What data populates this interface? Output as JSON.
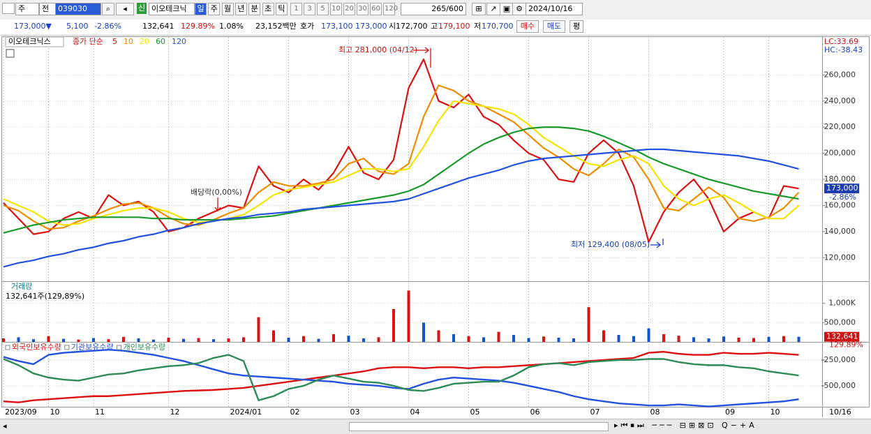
{
  "toolbar": {
    "type_a": "주",
    "type_b": "전",
    "code": "039030",
    "badge": "신",
    "name": "이오테크닉",
    "periods": [
      "일",
      "주",
      "월",
      "년",
      "분",
      "초",
      "틱"
    ],
    "counts": [
      "1",
      "3",
      "5",
      "10",
      "20",
      "30",
      "60",
      "120"
    ],
    "range": "265/600",
    "date": "2024/10/16"
  },
  "info_bar": {
    "price": "173,000▼",
    "change": "5,100",
    "rate": "-2.86%",
    "volume": "132,641",
    "volume_ratio": "129.89%",
    "turnover": "1.08%",
    "amount": "23,152백만",
    "ask_label": "호가",
    "ask": "173,100",
    "bid": "173,000",
    "open_label": "시",
    "open": "172,700",
    "high_label": "고",
    "high": "179,100",
    "low_label": "저",
    "low": "170,700",
    "buy": "매수",
    "sell": "매도",
    "eval": "평"
  },
  "chart_data": [
    {
      "type": "line",
      "stock_name": "이오테크닉스",
      "ma_label": "종가 단순",
      "lc": "LC:33.69",
      "hc": "HC:-38.43",
      "ylim": [
        102000,
        288000
      ],
      "yticks": [
        {
          "value": 120000,
          "label": "120,000"
        },
        {
          "value": 140000,
          "label": "140,000"
        },
        {
          "value": 160000,
          "label": "160,000"
        },
        {
          "value": 180000,
          "label": "180,000"
        },
        {
          "value": 200000,
          "label": "200,000"
        },
        {
          "value": 220000,
          "label": "220,000"
        },
        {
          "value": 240000,
          "label": "240,000"
        },
        {
          "value": 260000,
          "label": "260,000"
        }
      ],
      "grid": true,
      "price_tag": {
        "value": 173000,
        "label": "173,000"
      },
      "change_tag": "-2.86%",
      "annotations": [
        "최고 281,000 (04/12)",
        "배당락(0,00%)",
        "최저 129,400 (08/05)"
      ],
      "series": [
        {
          "name": "5",
          "color": "#dd1111",
          "values": [
            162000,
            150000,
            138000,
            140000,
            150000,
            155000,
            150000,
            168000,
            160000,
            163000,
            155000,
            140000,
            143000,
            150000,
            155000,
            160000,
            158000,
            190000,
            175000,
            170000,
            180000,
            172000,
            185000,
            205000,
            185000,
            180000,
            195000,
            250000,
            272000,
            240000,
            235000,
            245000,
            228000,
            222000,
            210000,
            200000,
            195000,
            180000,
            178000,
            200000,
            210000,
            200000,
            175000,
            132000,
            155000,
            170000,
            180000,
            165000,
            140000,
            150000,
            155000,
            150000,
            175000,
            173000
          ]
        },
        {
          "name": "10",
          "color": "#f08c00",
          "values": [
            160000,
            156000,
            148000,
            142000,
            143000,
            148000,
            152000,
            157000,
            161000,
            162000,
            158000,
            151000,
            146000,
            145000,
            149000,
            154000,
            158000,
            170000,
            178000,
            175000,
            175000,
            177000,
            180000,
            192000,
            196000,
            186000,
            184000,
            192000,
            228000,
            252000,
            248000,
            240000,
            236000,
            230000,
            224000,
            214000,
            204000,
            197000,
            188000,
            183000,
            192000,
            203000,
            197000,
            180000,
            158000,
            156000,
            165000,
            174000,
            166000,
            150000,
            148000,
            151000,
            158000,
            170000
          ]
        },
        {
          "name": "20",
          "color": "#f5e400",
          "values": [
            165000,
            160000,
            155000,
            148000,
            145000,
            146000,
            150000,
            153000,
            156000,
            158000,
            158000,
            155000,
            150000,
            147000,
            148000,
            150000,
            153000,
            160000,
            168000,
            172000,
            174000,
            176000,
            178000,
            183000,
            188000,
            188000,
            186000,
            188000,
            205000,
            225000,
            240000,
            238000,
            236000,
            234000,
            230000,
            222000,
            212000,
            205000,
            198000,
            192000,
            190000,
            195000,
            198000,
            192000,
            175000,
            165000,
            160000,
            165000,
            168000,
            162000,
            155000,
            150000,
            150000,
            160000
          ]
        },
        {
          "name": "60",
          "color": "#1a9a2a",
          "values": [
            139000,
            142000,
            145000,
            147000,
            149000,
            150000,
            151000,
            151000,
            151000,
            151000,
            150000,
            150000,
            149000,
            149000,
            149000,
            149000,
            150000,
            151000,
            152000,
            154000,
            156000,
            158000,
            160000,
            162000,
            164000,
            166000,
            168000,
            171000,
            176000,
            184000,
            192000,
            200000,
            207000,
            212000,
            216000,
            219000,
            220000,
            220000,
            219000,
            217000,
            213000,
            208000,
            203000,
            197000,
            192000,
            188000,
            184000,
            180000,
            177000,
            174000,
            171000,
            169000,
            167000,
            165000
          ]
        },
        {
          "name": "120",
          "color": "#2352e0",
          "values": [
            113000,
            116000,
            118000,
            121000,
            123000,
            126000,
            128000,
            131000,
            133000,
            136000,
            138000,
            141000,
            143000,
            146000,
            148000,
            150000,
            151000,
            153000,
            154000,
            155000,
            157000,
            158000,
            159000,
            160000,
            161000,
            162000,
            163000,
            165000,
            169000,
            173000,
            177000,
            181000,
            184000,
            187000,
            191000,
            194000,
            196000,
            197000,
            198000,
            199000,
            200000,
            201000,
            202000,
            203000,
            203000,
            202000,
            201000,
            200000,
            199000,
            198000,
            196000,
            194000,
            191000,
            188000
          ]
        }
      ]
    },
    {
      "type": "bar",
      "title": "거래량",
      "subtitle": "132,641주(129,89%)",
      "ylim": [
        0,
        1500000
      ],
      "yticks": [
        {
          "value": 500000,
          "label": "500,000"
        },
        {
          "value": 1000000,
          "label": "1,000K"
        }
      ],
      "grid": true,
      "volume_tag": {
        "value": 132641,
        "label": "132,641"
      },
      "ratio_tag": "129.89%",
      "values": [
        90000,
        120000,
        70000,
        150000,
        80000,
        60000,
        100000,
        70000,
        130000,
        90000,
        60000,
        110000,
        80000,
        100000,
        70000,
        90000,
        120000,
        640000,
        300000,
        110000,
        150000,
        80000,
        200000,
        160000,
        90000,
        120000,
        850000,
        1330000,
        500000,
        300000,
        200000,
        150000,
        120000,
        260000,
        180000,
        100000,
        140000,
        110000,
        90000,
        900000,
        300000,
        180000,
        150000,
        350000,
        200000,
        160000,
        120000,
        90000,
        140000,
        110000,
        100000,
        130000,
        150000,
        132641
      ],
      "colors": [
        "#d11",
        "#15c",
        "#15c",
        "#d11",
        "#15c",
        "#d11",
        "#15c",
        "#d11",
        "#d11",
        "#15c",
        "#15c",
        "#d11",
        "#15c",
        "#d11",
        "#15c",
        "#d11",
        "#d11",
        "#d11",
        "#d11",
        "#15c",
        "#d11",
        "#15c",
        "#d11",
        "#15c",
        "#15c",
        "#d11",
        "#d11",
        "#d11",
        "#15c",
        "#d11",
        "#15c",
        "#d11",
        "#15c",
        "#d11",
        "#15c",
        "#15c",
        "#d11",
        "#15c",
        "#15c",
        "#d11",
        "#d11",
        "#15c",
        "#15c",
        "#15c",
        "#d11",
        "#d11",
        "#15c",
        "#15c",
        "#15c",
        "#d11",
        "#d11",
        "#15c",
        "#d11",
        "#15c"
      ]
    },
    {
      "type": "line",
      "x_end_label": "10/16",
      "categories": [
        "2023/09",
        null,
        null,
        "10",
        null,
        null,
        "11",
        null,
        null,
        null,
        null,
        "12",
        null,
        null,
        null,
        "2024/01",
        null,
        null,
        null,
        "02",
        null,
        null,
        null,
        "03",
        null,
        null,
        null,
        "04",
        null,
        null,
        null,
        "05",
        null,
        null,
        null,
        "06",
        null,
        null,
        null,
        "07",
        null,
        null,
        null,
        "08",
        null,
        null,
        null,
        null,
        "09",
        null,
        null,
        "10",
        null,
        null
      ],
      "ylim": [
        -703000,
        -88000
      ],
      "yticks": [
        {
          "value": -250000,
          "label": "-250,000"
        },
        {
          "value": -500000,
          "label": "-500,000"
        }
      ],
      "grid": true,
      "series": [
        {
          "name": "외국인보유수량",
          "color": "#dd1111",
          "values": [
            -650000,
            -660000,
            -640000,
            -630000,
            -620000,
            -610000,
            -600000,
            -600000,
            -590000,
            -580000,
            -570000,
            -560000,
            -550000,
            -545000,
            -540000,
            -530000,
            -520000,
            -500000,
            -480000,
            -460000,
            -440000,
            -420000,
            -400000,
            -380000,
            -360000,
            -330000,
            -320000,
            -320000,
            -330000,
            -320000,
            -320000,
            -330000,
            -320000,
            -320000,
            -310000,
            -300000,
            -290000,
            -280000,
            -270000,
            -260000,
            -250000,
            -240000,
            -230000,
            -180000,
            -170000,
            -190000,
            -200000,
            -200000,
            -180000,
            -190000,
            -190000,
            -180000,
            -190000,
            -200000
          ]
        },
        {
          "name": "기관보유수량",
          "color": "#2352e0",
          "values": [
            -220000,
            -260000,
            -290000,
            -200000,
            -180000,
            -170000,
            -160000,
            -150000,
            -160000,
            -180000,
            -200000,
            -230000,
            -260000,
            -300000,
            -340000,
            -380000,
            -400000,
            -410000,
            -420000,
            -430000,
            -440000,
            -450000,
            -460000,
            -480000,
            -490000,
            -500000,
            -520000,
            -530000,
            -480000,
            -440000,
            -420000,
            -430000,
            -440000,
            -450000,
            -470000,
            -500000,
            -530000,
            -560000,
            -600000,
            -630000,
            -650000,
            -670000,
            -680000,
            -690000,
            -690000,
            -680000,
            -690000,
            -700000,
            -690000,
            -680000,
            -670000,
            -660000,
            -650000,
            -630000
          ]
        },
        {
          "name": "개인보유수량",
          "color": "#2e8b57",
          "values": [
            -240000,
            -300000,
            -380000,
            -420000,
            -440000,
            -450000,
            -420000,
            -390000,
            -380000,
            -350000,
            -330000,
            -310000,
            -300000,
            -280000,
            -230000,
            -200000,
            -260000,
            -640000,
            -600000,
            -530000,
            -500000,
            -440000,
            -400000,
            -430000,
            -460000,
            -470000,
            -500000,
            -540000,
            -550000,
            -520000,
            -480000,
            -470000,
            -460000,
            -460000,
            -400000,
            -320000,
            -290000,
            -280000,
            -300000,
            -270000,
            -260000,
            -250000,
            -250000,
            -240000,
            -240000,
            -270000,
            -290000,
            -300000,
            -300000,
            -320000,
            -330000,
            -360000,
            -380000,
            -400000
          ]
        }
      ]
    }
  ]
}
